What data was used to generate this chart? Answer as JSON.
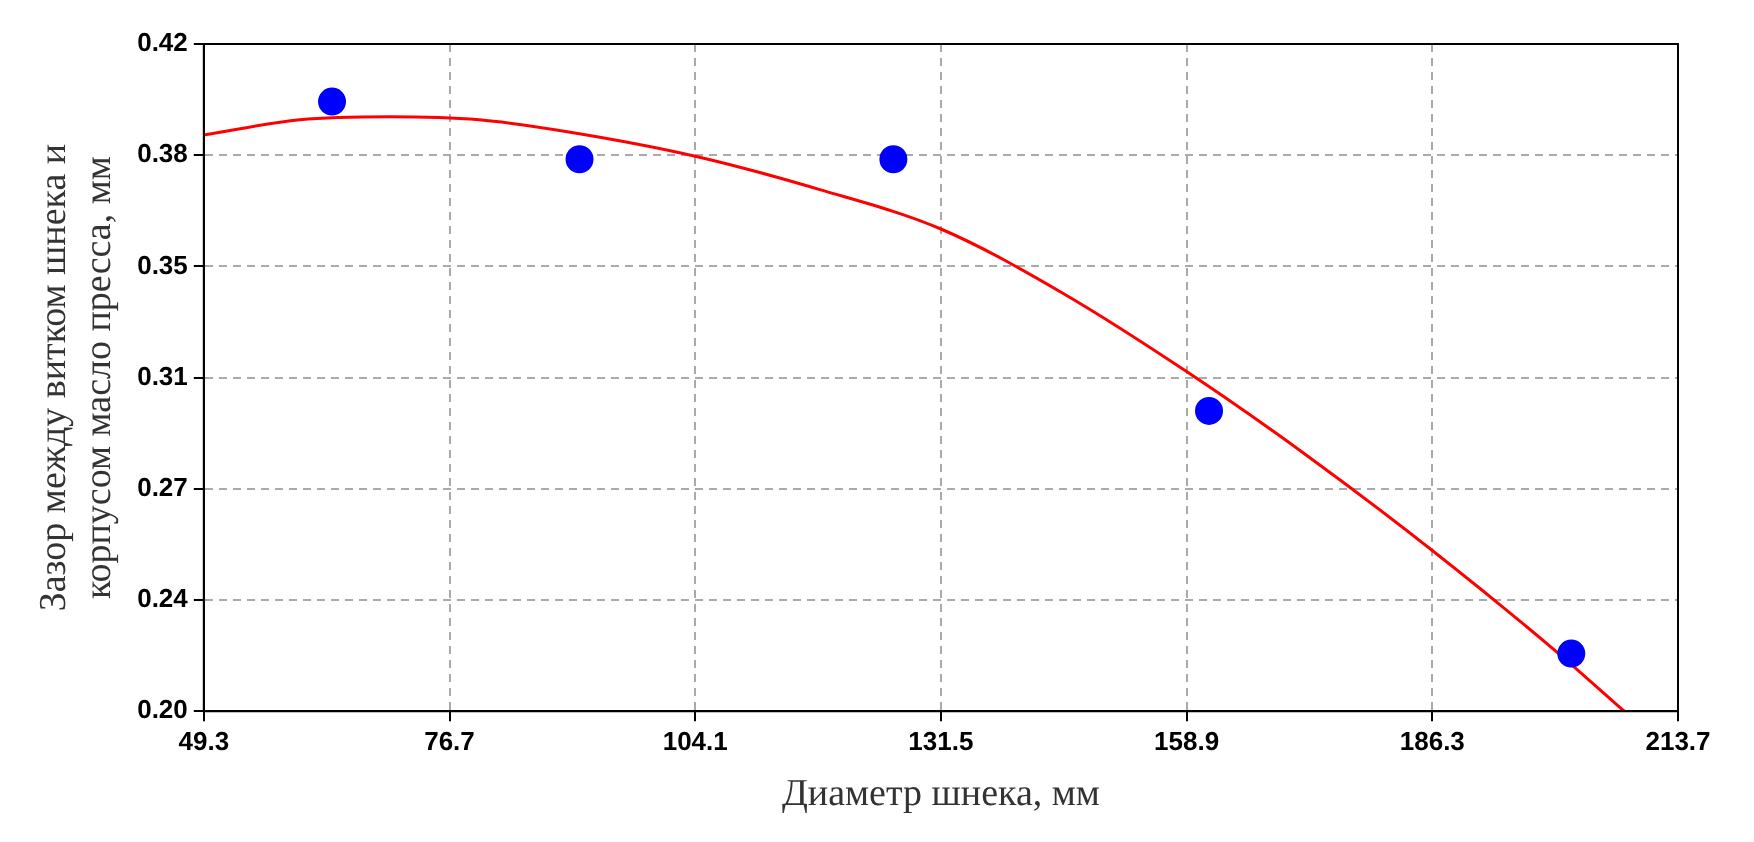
{
  "chart_data": {
    "type": "scatter",
    "xlabel": "Диаметр шнека, мм",
    "ylabel": "Зазор между витком шнека и корпусом масло пресса, мм",
    "xlim": [
      49.3,
      213.7
    ],
    "xticks": [
      49.3,
      76.7,
      104.1,
      131.5,
      158.9,
      186.3,
      213.7
    ],
    "ylim": [
      0.2,
      0.42
    ],
    "yticks": [
      {
        "value": 0.2,
        "label": "0.20"
      },
      {
        "value": 0.23667,
        "label": "0.24"
      },
      {
        "value": 0.27333,
        "label": "0.27"
      },
      {
        "value": 0.31,
        "label": "0.31"
      },
      {
        "value": 0.34667,
        "label": "0.35"
      },
      {
        "value": 0.38333,
        "label": "0.38"
      },
      {
        "value": 0.42,
        "label": "0.42"
      }
    ],
    "grid": true,
    "legend": false,
    "series": [
      {
        "color": "#0000ff",
        "marker": "circle",
        "x": [
          63.6,
          91.2,
          126.2,
          161.4,
          201.8
        ],
        "values": [
          0.401,
          0.382,
          0.382,
          0.299,
          0.219
        ]
      },
      {
        "type": "line",
        "color": "#ff0000",
        "marker": "none",
        "line_style": "solid",
        "x": [
          49.3,
          60,
          70,
          80,
          90,
          104.1,
          118,
          131.5,
          145,
          158.9,
          172,
          186.3,
          200,
          207.7
        ],
        "values": [
          0.39,
          0.395,
          0.396,
          0.395,
          0.391,
          0.383,
          0.372,
          0.359,
          0.338,
          0.312,
          0.285,
          0.253,
          0.22,
          0.2
        ]
      }
    ]
  }
}
